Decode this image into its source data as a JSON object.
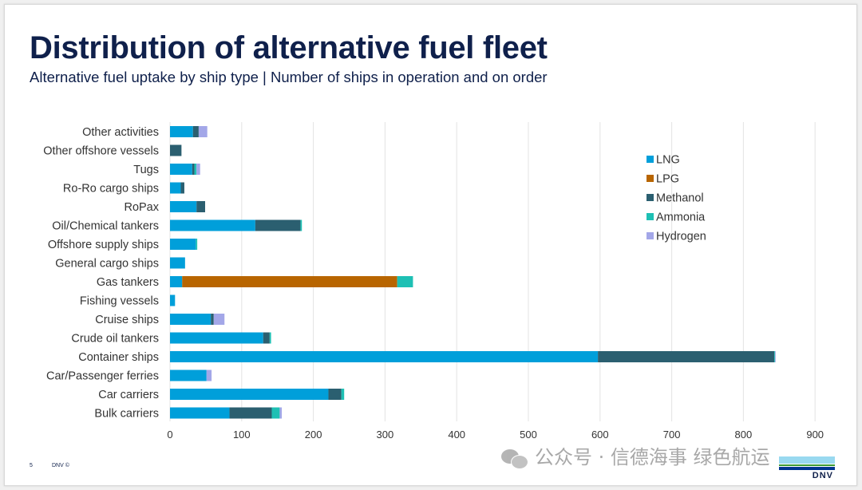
{
  "slide": {
    "title": "Distribution of alternative fuel fleet",
    "subtitle": "Alternative fuel uptake by ship type | Number of ships in operation and on order",
    "page_number": "5",
    "footer_brand": "DNV ©",
    "logo_text": "DNV",
    "watermark": "公众号 · 信德海事 绿色航运"
  },
  "chart_data": {
    "type": "bar",
    "orientation": "horizontal",
    "stacked": true,
    "title": "Distribution of alternative fuel fleet",
    "subtitle": "Alternative fuel uptake by ship type | Number of ships in operation and on order",
    "xlabel": "",
    "ylabel": "",
    "xlim": [
      0,
      930
    ],
    "xticks": [
      0,
      100,
      200,
      300,
      400,
      500,
      600,
      700,
      800,
      900
    ],
    "grid": "vertical",
    "legend_position": "right",
    "categories": [
      "Other activities",
      "Other offshore vessels",
      "Tugs",
      "Ro-Ro cargo ships",
      "RoPax",
      "Oil/Chemical tankers",
      "Offshore supply ships",
      "General cargo ships",
      "Gas tankers",
      "Fishing vessels",
      "Cruise ships",
      "Crude oil tankers",
      "Container ships",
      "Car/Passenger ferries",
      "Car carriers",
      "Bulk carriers"
    ],
    "series": [
      {
        "name": "LNG",
        "color": "#009fda",
        "values": [
          32,
          0,
          31,
          15,
          37,
          119,
          36,
          21,
          17,
          7,
          57,
          130,
          597,
          51,
          221,
          83
        ]
      },
      {
        "name": "LPG",
        "color": "#b86500",
        "values": [
          0,
          0,
          0,
          0,
          0,
          0,
          0,
          0,
          300,
          0,
          0,
          0,
          0,
          0,
          0,
          0
        ]
      },
      {
        "name": "Methanol",
        "color": "#2b5f70",
        "values": [
          8,
          16,
          3,
          5,
          12,
          63,
          0,
          0,
          0,
          0,
          4,
          9,
          246,
          0,
          18,
          59
        ]
      },
      {
        "name": "Ammonia",
        "color": "#1ec0b4",
        "values": [
          0,
          0,
          3,
          0,
          0,
          2,
          2,
          0,
          22,
          0,
          0,
          2,
          1,
          0,
          4,
          11
        ]
      },
      {
        "name": "Hydrogen",
        "color": "#a3a7e8",
        "values": [
          12,
          0,
          5,
          0,
          0,
          0,
          0,
          0,
          0,
          0,
          15,
          0,
          1,
          7,
          0,
          3
        ]
      }
    ]
  }
}
